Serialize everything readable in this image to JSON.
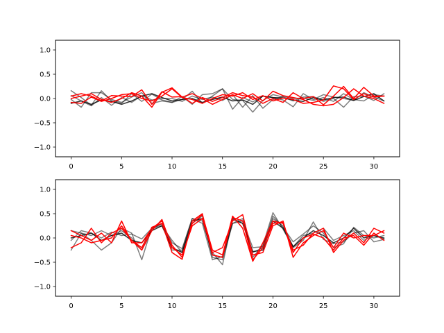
{
  "chart_data": [
    {
      "type": "line",
      "xlim": [
        -1.55,
        32.55
      ],
      "ylim": [
        -1.2,
        1.2
      ],
      "xticks": [
        0,
        5,
        10,
        15,
        20,
        25,
        30
      ],
      "xtick_labels": [
        "0",
        "5",
        "10",
        "15",
        "20",
        "25",
        "30"
      ],
      "yticks": [
        1.0,
        0.5,
        0.0,
        -0.5,
        -1.0
      ],
      "ytick_labels": [
        "1.0",
        "0.5",
        "0.0",
        "−0.5",
        "−1.0"
      ],
      "x": [
        0,
        1,
        2,
        3,
        4,
        5,
        6,
        7,
        8,
        9,
        10,
        11,
        12,
        13,
        14,
        15,
        16,
        17,
        18,
        19,
        20,
        21,
        22,
        23,
        24,
        25,
        26,
        27,
        28,
        29,
        30,
        31
      ],
      "series": [
        {
          "color": "#000000",
          "alpha": 0.5,
          "values": [
            0.16,
            0.02,
            -0.14,
            0.16,
            -0.05,
            -0.1,
            0.1,
            -0.06,
            0.09,
            -0.03,
            -0.08,
            -0.02,
            0.15,
            -0.1,
            0.05,
            0.2,
            -0.22,
            0.02,
            -0.07,
            0.05,
            0.02,
            -0.03,
            -0.17,
            0.1,
            -0.02,
            0.08,
            0.03,
            0.0,
            -0.04,
            0.12,
            0.03,
            -0.05
          ]
        },
        {
          "color": "#000000",
          "alpha": 0.5,
          "values": [
            -0.02,
            -0.18,
            0.12,
            0.12,
            -0.02,
            -0.08,
            0.03,
            0.12,
            -0.1,
            -0.05,
            -0.08,
            0.04,
            -0.12,
            0.08,
            0.1,
            0.2,
            -0.02,
            -0.04,
            -0.28,
            -0.04,
            0.08,
            0.03,
            -0.05,
            0.03,
            0.04,
            -0.06,
            0.0,
            -0.18,
            0.04,
            0.05,
            -0.04,
            0.1
          ]
        },
        {
          "color": "#000000",
          "alpha": 0.5,
          "values": [
            0.06,
            -0.05,
            -0.15,
            0.02,
            -0.14,
            0.02,
            -0.08,
            0.06,
            -0.03,
            0.0,
            0.0,
            -0.06,
            0.05,
            -0.02,
            0.03,
            -0.04,
            0.08,
            -0.18,
            0.06,
            -0.2,
            -0.02,
            0.04,
            0.0,
            0.01,
            -0.04,
            0.02,
            -0.06,
            0.1,
            -0.02,
            -0.05,
            0.08,
            0.05
          ]
        },
        {
          "color": "#000000",
          "alpha": 0.8,
          "values": [
            -0.1,
            -0.05,
            -0.12,
            -0.03,
            -0.06,
            -0.12,
            -0.05,
            0.05,
            0.1,
            0.02,
            -0.05,
            -0.02,
            0.0,
            -0.08,
            -0.02,
            0.03,
            -0.05,
            -0.03,
            -0.12,
            0.05,
            0.02,
            0.01,
            -0.03,
            -0.06,
            0.02,
            -0.03,
            0.02,
            0.03,
            -0.04,
            0.04,
            0.1,
            -0.05
          ]
        },
        {
          "color": "#ff0000",
          "alpha": 1.0,
          "values": [
            0.05,
            0.1,
            0.05,
            -0.05,
            0.06,
            0.05,
            0.04,
            0.18,
            -0.12,
            0.14,
            0.03,
            0.04,
            -0.1,
            0.02,
            -0.06,
            0.02,
            0.12,
            0.06,
            0.03,
            -0.1,
            0.0,
            -0.08,
            0.12,
            0.0,
            0.04,
            -0.13,
            0.05,
            0.25,
            0.0,
            0.23,
            0.05,
            0.05
          ]
        },
        {
          "color": "#ff0000",
          "alpha": 1.0,
          "values": [
            -0.08,
            -0.1,
            0.03,
            -0.06,
            0.0,
            0.08,
            0.1,
            0.0,
            -0.05,
            0.05,
            0.2,
            0.02,
            -0.02,
            -0.1,
            0.0,
            0.08,
            0.05,
            0.12,
            -0.02,
            0.06,
            -0.05,
            0.01,
            -0.02,
            -0.1,
            -0.08,
            -0.03,
            0.26,
            0.2,
            -0.02,
            0.1,
            0.03,
            0.05
          ]
        },
        {
          "color": "#ff0000",
          "alpha": 1.0,
          "values": [
            0.0,
            0.05,
            0.1,
            -0.02,
            -0.08,
            0.0,
            0.12,
            0.05,
            -0.18,
            0.13,
            0.22,
            0.03,
            0.1,
            0.0,
            -0.12,
            -0.02,
            0.08,
            0.0,
            0.1,
            -0.05,
            0.15,
            0.06,
            0.02,
            -0.02,
            -0.12,
            -0.15,
            -0.12,
            0.02,
            0.2,
            0.05,
            0.0,
            -0.1
          ]
        }
      ]
    },
    {
      "type": "line",
      "xlim": [
        -1.55,
        32.55
      ],
      "ylim": [
        -1.2,
        1.2
      ],
      "xticks": [
        0,
        5,
        10,
        15,
        20,
        25,
        30
      ],
      "xtick_labels": [
        "0",
        "5",
        "10",
        "15",
        "20",
        "25",
        "30"
      ],
      "yticks": [
        1.0,
        0.5,
        0.0,
        -0.5,
        -1.0
      ],
      "ytick_labels": [
        "1.0",
        "0.5",
        "0.0",
        "−0.5",
        "−1.0"
      ],
      "x": [
        0,
        1,
        2,
        3,
        4,
        5,
        6,
        7,
        8,
        9,
        10,
        11,
        12,
        13,
        14,
        15,
        16,
        17,
        18,
        19,
        20,
        21,
        22,
        23,
        24,
        25,
        26,
        27,
        28,
        29,
        30,
        31
      ],
      "series": [
        {
          "color": "#000000",
          "alpha": 0.5,
          "values": [
            -0.25,
            0.1,
            -0.05,
            -0.25,
            -0.1,
            0.2,
            0.1,
            -0.45,
            0.22,
            0.28,
            -0.1,
            -0.22,
            0.4,
            0.3,
            -0.45,
            -0.38,
            0.3,
            0.4,
            -0.4,
            -0.15,
            0.52,
            0.18,
            -0.2,
            -0.05,
            0.33,
            -0.03,
            -0.12,
            -0.08,
            0.1,
            0.15,
            -0.08,
            -0.03
          ]
        },
        {
          "color": "#000000",
          "alpha": 0.5,
          "values": [
            0.15,
            0.1,
            0.05,
            0.15,
            0.05,
            0.15,
            0.0,
            -0.25,
            0.18,
            0.3,
            -0.25,
            -0.25,
            0.4,
            0.35,
            -0.3,
            -0.55,
            0.38,
            0.3,
            -0.3,
            -0.2,
            0.45,
            0.22,
            -0.08,
            0.08,
            0.25,
            0.1,
            -0.2,
            -0.12,
            0.22,
            0.05,
            0.0,
            0.05
          ]
        },
        {
          "color": "#000000",
          "alpha": 0.5,
          "values": [
            -0.05,
            0.15,
            0.1,
            0.0,
            0.12,
            0.05,
            0.08,
            -0.02,
            0.2,
            0.25,
            -0.05,
            -0.3,
            0.3,
            0.45,
            -0.4,
            -0.45,
            0.3,
            0.35,
            -0.2,
            -0.18,
            0.4,
            0.25,
            -0.18,
            0.05,
            0.1,
            0.2,
            -0.05,
            0.05,
            0.15,
            -0.05,
            0.05,
            -0.02
          ]
        },
        {
          "color": "#000000",
          "alpha": 0.8,
          "values": [
            0.0,
            0.05,
            0.1,
            -0.05,
            0.05,
            0.1,
            -0.05,
            -0.1,
            0.15,
            0.25,
            -0.2,
            -0.3,
            0.35,
            0.4,
            -0.35,
            -0.4,
            0.4,
            0.3,
            -0.28,
            -0.25,
            0.35,
            0.2,
            -0.18,
            0.0,
            0.15,
            0.05,
            -0.1,
            0.0,
            0.2,
            0.0,
            0.05,
            0.0
          ]
        },
        {
          "color": "#ff0000",
          "alpha": 1.0,
          "values": [
            0.15,
            0.05,
            -0.05,
            0.1,
            -0.1,
            0.35,
            -0.1,
            -0.1,
            0.2,
            0.35,
            -0.15,
            -0.4,
            0.3,
            0.48,
            -0.25,
            -0.35,
            0.45,
            0.2,
            -0.48,
            -0.1,
            0.35,
            0.3,
            -0.25,
            -0.15,
            0.1,
            0.2,
            -0.3,
            -0.05,
            0.1,
            -0.1,
            0.2,
            0.1
          ]
        },
        {
          "color": "#ff0000",
          "alpha": 1.0,
          "values": [
            -0.2,
            -0.1,
            0.2,
            -0.1,
            0.1,
            0.2,
            -0.05,
            -0.25,
            0.15,
            0.38,
            -0.2,
            -0.35,
            0.25,
            0.4,
            -0.3,
            -0.2,
            0.35,
            0.48,
            -0.35,
            -0.3,
            0.25,
            0.35,
            -0.4,
            -0.1,
            0.05,
            0.15,
            -0.2,
            0.1,
            0.0,
            0.05,
            0.05,
            0.15
          ]
        },
        {
          "color": "#ff0000",
          "alpha": 1.0,
          "values": [
            0.05,
            0.0,
            -0.1,
            -0.05,
            0.0,
            0.25,
            -0.05,
            -0.2,
            0.22,
            0.3,
            -0.3,
            -0.44,
            0.35,
            0.5,
            -0.35,
            -0.4,
            0.42,
            0.35,
            -0.45,
            -0.2,
            0.3,
            0.32,
            -0.3,
            0.0,
            0.08,
            0.0,
            -0.25,
            0.0,
            0.05,
            -0.15,
            0.1,
            -0.05
          ]
        }
      ]
    }
  ]
}
